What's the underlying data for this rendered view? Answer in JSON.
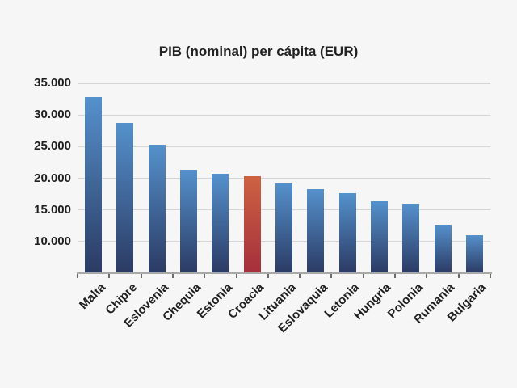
{
  "chart_data": {
    "type": "bar",
    "title": "PIB (nominal) per cápita (EUR)",
    "categories": [
      "Malta",
      "Chipre",
      "Eslovenia",
      "Chequia",
      "Estonia",
      "Croacia",
      "Lituania",
      "Eslovaquia",
      "Letonia",
      "Hungria",
      "Polonia",
      "Rumania",
      "Bulgaria"
    ],
    "values": [
      32800,
      28700,
      25300,
      21300,
      20700,
      20300,
      19200,
      18300,
      17600,
      16400,
      16000,
      12600,
      11000
    ],
    "highlight_category": "Croacia",
    "highlight_index": 5,
    "xlabel": "",
    "ylabel": "",
    "ylim": [
      5000,
      35000
    ],
    "yticks": [
      10000,
      15000,
      20000,
      25000,
      30000,
      35000
    ],
    "ytick_labels": [
      "10.000",
      "15.000",
      "20.000",
      "25.000",
      "30.000",
      "35.000"
    ],
    "grid": true,
    "legend_position": "none",
    "colors": {
      "background": "#f6f6f6",
      "bar_gradient_top": "#5591cc",
      "bar_gradient_bottom": "#2b3a63",
      "highlight_gradient_top": "#cd6242",
      "highlight_gradient_bottom": "#a52f3c",
      "gridline": "#d5d5d5",
      "axis_line": "#a8a8a8",
      "tick": "#6b6b6b",
      "text": "#1f1f1f"
    }
  }
}
